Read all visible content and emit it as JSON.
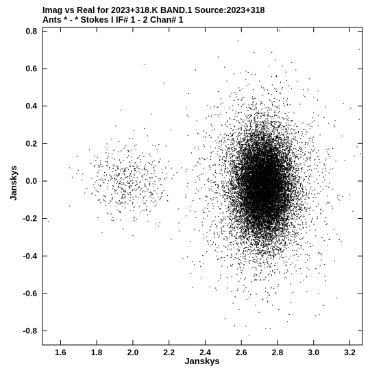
{
  "header": {
    "line1": "Imag vs Real for 2023+318.K BAND.1   Source:2023+318",
    "line2": "Ants * - *     Stokes I  IF# 1 - 2  Chan# 1"
  },
  "chart_data": {
    "type": "scatter",
    "title": "Imag vs Real for 2023+318.K BAND.1   Source:2023+318",
    "subtitle": "Ants * - *     Stokes I  IF# 1 - 2  Chan# 1",
    "xlabel": "Janskys",
    "ylabel": "Janskys",
    "xlim": [
      1.5,
      3.27
    ],
    "ylim": [
      -0.875,
      0.82
    ],
    "xticks": [
      1.6,
      1.8,
      2.0,
      2.2,
      2.4,
      2.6,
      2.8,
      3.0,
      3.2
    ],
    "xtick_labels": [
      "1.6",
      "1.8",
      "2.0",
      "2.2",
      "2.4",
      "2.6",
      "2.8",
      "3.0",
      "3.2"
    ],
    "yticks": [
      -0.8,
      -0.6,
      -0.4,
      -0.2,
      0.0,
      0.2,
      0.4,
      0.6,
      0.8
    ],
    "ytick_labels": [
      "-0.8",
      "-0.6",
      "-0.4",
      "-0.2",
      "0.0",
      "0.2",
      "0.4",
      "0.6",
      "0.8"
    ],
    "grid": false,
    "legend": "none",
    "marker_color": "#000000",
    "clusters": [
      {
        "center": [
          2.72,
          -0.03
        ],
        "spread": [
          0.075,
          0.135
        ],
        "count": 15000
      },
      {
        "center": [
          2.72,
          -0.03
        ],
        "spread": [
          0.16,
          0.24
        ],
        "count": 3200
      },
      {
        "center": [
          1.97,
          0.0
        ],
        "spread": [
          0.11,
          0.1
        ],
        "count": 500
      }
    ],
    "outliers": [
      [
        2.06,
        0.625
      ],
      [
        2.17,
        0.525
      ],
      [
        2.58,
        0.75
      ],
      [
        2.81,
        0.805
      ],
      [
        3.25,
        0.705
      ],
      [
        1.93,
        0.38
      ],
      [
        2.1,
        0.36
      ],
      [
        1.53,
        -0.215
      ],
      [
        2.56,
        -0.77
      ],
      [
        2.64,
        -0.82
      ],
      [
        2.79,
        -0.6
      ],
      [
        2.77,
        -0.66
      ],
      [
        2.47,
        -0.53
      ],
      [
        2.46,
        -0.58
      ],
      [
        3.14,
        -0.31
      ],
      [
        3.04,
        -0.42
      ],
      [
        2.34,
        0.08
      ],
      [
        2.36,
        -0.05
      ],
      [
        3.08,
        0.31
      ],
      [
        2.47,
        0.48
      ]
    ]
  }
}
